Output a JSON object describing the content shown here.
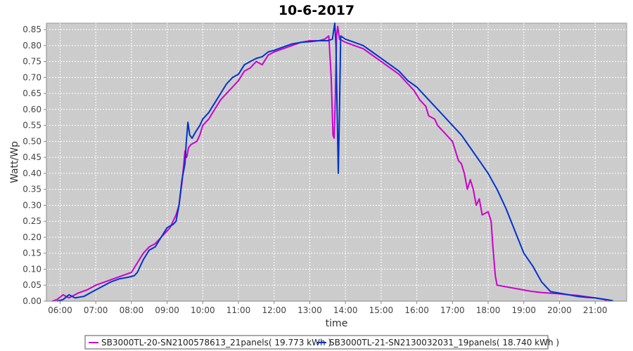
{
  "chart_data": {
    "type": "line",
    "title": "10-6-2017",
    "xlabel": "time",
    "ylabel": "Watt/Wp",
    "x_ticks": [
      "06:00",
      "07:00",
      "08:00",
      "09:00",
      "10:00",
      "11:00",
      "12:00",
      "13:00",
      "14:00",
      "15:00",
      "16:00",
      "17:00",
      "18:00",
      "19:00",
      "20:00",
      "21:00"
    ],
    "y_ticks": [
      "0.00",
      "0.05",
      "0.10",
      "0.15",
      "0.20",
      "0.25",
      "0.30",
      "0.35",
      "0.40",
      "0.45",
      "0.50",
      "0.55",
      "0.60",
      "0.65",
      "0.70",
      "0.75",
      "0.80",
      "0.85"
    ],
    "xlim": [
      "05:37",
      "21:53"
    ],
    "ylim": [
      0,
      0.87
    ],
    "grid": true,
    "legend_position": "bottom",
    "plot_background": "#cccccc",
    "series": [
      {
        "name": "SB3000TL-20-SN2100578613_21panels( 19.773 kWh )",
        "color": "#cc00cc",
        "points": [
          [
            "05:47",
            0.0
          ],
          [
            "05:55",
            0.005
          ],
          [
            "06:05",
            0.02
          ],
          [
            "06:15",
            0.01
          ],
          [
            "06:30",
            0.025
          ],
          [
            "06:45",
            0.035
          ],
          [
            "07:00",
            0.05
          ],
          [
            "07:15",
            0.06
          ],
          [
            "07:30",
            0.07
          ],
          [
            "07:45",
            0.08
          ],
          [
            "08:00",
            0.09
          ],
          [
            "08:10",
            0.12
          ],
          [
            "08:20",
            0.15
          ],
          [
            "08:30",
            0.17
          ],
          [
            "08:40",
            0.18
          ],
          [
            "08:50",
            0.2
          ],
          [
            "09:00",
            0.22
          ],
          [
            "09:05",
            0.23
          ],
          [
            "09:15",
            0.27
          ],
          [
            "09:20",
            0.3
          ],
          [
            "09:25",
            0.37
          ],
          [
            "09:30",
            0.47
          ],
          [
            "09:33",
            0.45
          ],
          [
            "09:36",
            0.48
          ],
          [
            "09:40",
            0.49
          ],
          [
            "09:50",
            0.5
          ],
          [
            "09:55",
            0.52
          ],
          [
            "10:00",
            0.55
          ],
          [
            "10:10",
            0.57
          ],
          [
            "10:20",
            0.6
          ],
          [
            "10:30",
            0.63
          ],
          [
            "10:40",
            0.65
          ],
          [
            "10:50",
            0.67
          ],
          [
            "11:00",
            0.69
          ],
          [
            "11:10",
            0.72
          ],
          [
            "11:20",
            0.73
          ],
          [
            "11:30",
            0.75
          ],
          [
            "11:40",
            0.74
          ],
          [
            "11:50",
            0.77
          ],
          [
            "12:00",
            0.78
          ],
          [
            "12:15",
            0.79
          ],
          [
            "12:30",
            0.8
          ],
          [
            "12:45",
            0.81
          ],
          [
            "13:00",
            0.815
          ],
          [
            "13:15",
            0.815
          ],
          [
            "13:25",
            0.82
          ],
          [
            "13:32",
            0.83
          ],
          [
            "13:36",
            0.7
          ],
          [
            "13:39",
            0.52
          ],
          [
            "13:41",
            0.51
          ],
          [
            "13:43",
            0.64
          ],
          [
            "13:45",
            0.83
          ],
          [
            "13:47",
            0.86
          ],
          [
            "13:50",
            0.82
          ],
          [
            "14:00",
            0.81
          ],
          [
            "14:15",
            0.8
          ],
          [
            "14:30",
            0.79
          ],
          [
            "14:45",
            0.77
          ],
          [
            "15:00",
            0.75
          ],
          [
            "15:15",
            0.73
          ],
          [
            "15:30",
            0.71
          ],
          [
            "15:45",
            0.68
          ],
          [
            "15:55",
            0.66
          ],
          [
            "16:05",
            0.63
          ],
          [
            "16:15",
            0.61
          ],
          [
            "16:20",
            0.58
          ],
          [
            "16:30",
            0.57
          ],
          [
            "16:35",
            0.55
          ],
          [
            "16:45",
            0.53
          ],
          [
            "16:55",
            0.51
          ],
          [
            "17:00",
            0.5
          ],
          [
            "17:05",
            0.47
          ],
          [
            "17:10",
            0.44
          ],
          [
            "17:15",
            0.43
          ],
          [
            "17:20",
            0.4
          ],
          [
            "17:25",
            0.35
          ],
          [
            "17:30",
            0.38
          ],
          [
            "17:35",
            0.35
          ],
          [
            "17:40",
            0.3
          ],
          [
            "17:45",
            0.32
          ],
          [
            "17:50",
            0.27
          ],
          [
            "18:00",
            0.28
          ],
          [
            "18:05",
            0.25
          ],
          [
            "18:08",
            0.17
          ],
          [
            "18:12",
            0.08
          ],
          [
            "18:15",
            0.05
          ],
          [
            "18:30",
            0.045
          ],
          [
            "18:45",
            0.04
          ],
          [
            "19:00",
            0.035
          ],
          [
            "19:15",
            0.03
          ],
          [
            "19:30",
            0.027
          ],
          [
            "19:45",
            0.025
          ],
          [
            "20:00",
            0.023
          ],
          [
            "20:15",
            0.02
          ],
          [
            "20:30",
            0.018
          ],
          [
            "20:45",
            0.014
          ],
          [
            "21:00",
            0.01
          ],
          [
            "21:15",
            0.005
          ],
          [
            "21:20",
            0.002
          ]
        ]
      },
      {
        "name": "SB3000TL-21-SN2130032031_19panels( 18.740 kWh )",
        "color": "#0033cc",
        "points": [
          [
            "05:55",
            0.0
          ],
          [
            "06:05",
            0.005
          ],
          [
            "06:15",
            0.02
          ],
          [
            "06:25",
            0.01
          ],
          [
            "06:40",
            0.015
          ],
          [
            "06:55",
            0.03
          ],
          [
            "07:10",
            0.045
          ],
          [
            "07:25",
            0.06
          ],
          [
            "07:40",
            0.07
          ],
          [
            "07:55",
            0.075
          ],
          [
            "08:05",
            0.08
          ],
          [
            "08:10",
            0.09
          ],
          [
            "08:20",
            0.13
          ],
          [
            "08:30",
            0.16
          ],
          [
            "08:40",
            0.17
          ],
          [
            "08:50",
            0.2
          ],
          [
            "09:00",
            0.23
          ],
          [
            "09:10",
            0.24
          ],
          [
            "09:15",
            0.25
          ],
          [
            "09:20",
            0.3
          ],
          [
            "09:25",
            0.38
          ],
          [
            "09:30",
            0.43
          ],
          [
            "09:32",
            0.49
          ],
          [
            "09:35",
            0.56
          ],
          [
            "09:38",
            0.52
          ],
          [
            "09:42",
            0.51
          ],
          [
            "09:48",
            0.53
          ],
          [
            "09:55",
            0.55
          ],
          [
            "10:00",
            0.57
          ],
          [
            "10:10",
            0.59
          ],
          [
            "10:20",
            0.62
          ],
          [
            "10:30",
            0.65
          ],
          [
            "10:40",
            0.68
          ],
          [
            "10:50",
            0.7
          ],
          [
            "11:00",
            0.71
          ],
          [
            "11:10",
            0.74
          ],
          [
            "11:20",
            0.75
          ],
          [
            "11:30",
            0.76
          ],
          [
            "11:40",
            0.765
          ],
          [
            "11:50",
            0.78
          ],
          [
            "12:00",
            0.785
          ],
          [
            "12:15",
            0.795
          ],
          [
            "12:30",
            0.805
          ],
          [
            "12:45",
            0.81
          ],
          [
            "13:00",
            0.812
          ],
          [
            "13:15",
            0.815
          ],
          [
            "13:30",
            0.815
          ],
          [
            "13:38",
            0.82
          ],
          [
            "13:42",
            0.87
          ],
          [
            "13:44",
            0.8
          ],
          [
            "13:46",
            0.6
          ],
          [
            "13:48",
            0.4
          ],
          [
            "13:50",
            0.6
          ],
          [
            "13:52",
            0.83
          ],
          [
            "14:00",
            0.82
          ],
          [
            "14:15",
            0.81
          ],
          [
            "14:30",
            0.8
          ],
          [
            "14:45",
            0.78
          ],
          [
            "15:00",
            0.76
          ],
          [
            "15:15",
            0.74
          ],
          [
            "15:30",
            0.72
          ],
          [
            "15:45",
            0.69
          ],
          [
            "16:00",
            0.67
          ],
          [
            "16:15",
            0.64
          ],
          [
            "16:30",
            0.61
          ],
          [
            "16:45",
            0.58
          ],
          [
            "17:00",
            0.55
          ],
          [
            "17:15",
            0.52
          ],
          [
            "17:30",
            0.48
          ],
          [
            "17:45",
            0.44
          ],
          [
            "18:00",
            0.4
          ],
          [
            "18:15",
            0.35
          ],
          [
            "18:30",
            0.29
          ],
          [
            "18:45",
            0.22
          ],
          [
            "19:00",
            0.15
          ],
          [
            "19:15",
            0.11
          ],
          [
            "19:30",
            0.06
          ],
          [
            "19:40",
            0.04
          ],
          [
            "19:45",
            0.03
          ],
          [
            "20:00",
            0.025
          ],
          [
            "20:15",
            0.02
          ],
          [
            "20:30",
            0.015
          ],
          [
            "20:45",
            0.012
          ],
          [
            "21:00",
            0.01
          ],
          [
            "21:15",
            0.006
          ],
          [
            "21:25",
            0.003
          ],
          [
            "21:30",
            0.001
          ]
        ]
      }
    ]
  }
}
